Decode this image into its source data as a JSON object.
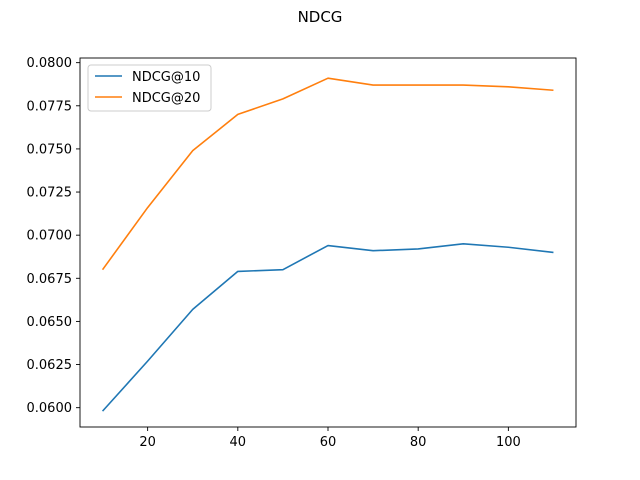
{
  "chart_data": {
    "type": "line",
    "title": "NDCG",
    "xlabel": "",
    "ylabel": "",
    "x": [
      10,
      20,
      30,
      40,
      50,
      60,
      70,
      80,
      90,
      100,
      110
    ],
    "series": [
      {
        "name": "NDCG@10",
        "color": "#1f77b4",
        "values": [
          0.0598,
          0.0627,
          0.0657,
          0.0679,
          0.068,
          0.0694,
          0.0691,
          0.0692,
          0.0695,
          0.0693,
          0.069
        ]
      },
      {
        "name": "NDCG@20",
        "color": "#ff7f0e",
        "values": [
          0.068,
          0.0716,
          0.0749,
          0.077,
          0.0779,
          0.0791,
          0.0787,
          0.0787,
          0.0787,
          0.0786,
          0.0784
        ]
      }
    ],
    "xlim": [
      5,
      115
    ],
    "ylim": [
      0.05888,
      0.08027
    ],
    "xticks": [
      20,
      40,
      60,
      80,
      100
    ],
    "yticks": [
      0.06,
      0.0625,
      0.065,
      0.0675,
      0.07,
      0.0725,
      0.075,
      0.0775,
      0.08
    ],
    "xtick_labels": [
      "20",
      "40",
      "60",
      "80",
      "100"
    ],
    "ytick_labels": [
      "0.0600",
      "0.0625",
      "0.0650",
      "0.0675",
      "0.0700",
      "0.0725",
      "0.0750",
      "0.0775",
      "0.0800"
    ],
    "grid": false,
    "legend_position": "upper left"
  }
}
